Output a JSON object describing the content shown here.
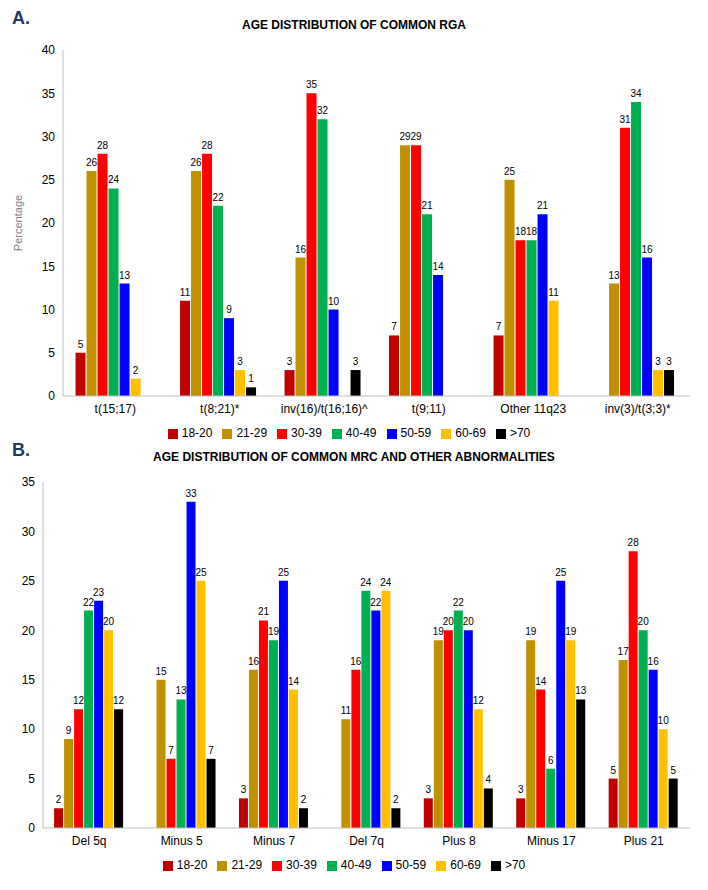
{
  "chart_data": [
    {
      "type": "bar",
      "annotation": "A.",
      "title": "AGE DISTRIBUTION OF COMMON RGA",
      "y_label": "Percentage",
      "categories": [
        "t(15;17)",
        "t(8;21)*",
        "inv(16)/t(16;16)^",
        "t(9;11)",
        "Other 11q23",
        "inv(3)/t(3;3)*"
      ],
      "series": [
        {
          "name": "18-20",
          "color": "#C00000",
          "values": [
            5,
            11,
            3,
            7,
            7,
            0
          ]
        },
        {
          "name": "21-29",
          "color": "#BF9000",
          "values": [
            26,
            26,
            16,
            29,
            25,
            13
          ]
        },
        {
          "name": "30-39",
          "color": "#FF0000",
          "values": [
            28,
            28,
            35,
            29,
            18,
            31
          ]
        },
        {
          "name": "40-49",
          "color": "#00B050",
          "values": [
            24,
            22,
            32,
            21,
            18,
            34
          ]
        },
        {
          "name": "50-59",
          "color": "#0000FF",
          "values": [
            13,
            9,
            10,
            14,
            21,
            16
          ]
        },
        {
          "name": "60-69",
          "color": "#FFC000",
          "values": [
            2,
            3,
            0,
            0,
            11,
            3
          ]
        },
        {
          "name": ">70",
          "color": "#000000",
          "values": [
            0,
            1,
            3,
            0,
            0,
            3
          ]
        }
      ],
      "ylim": [
        0,
        40
      ],
      "yticks": [
        0,
        5,
        10,
        15,
        20,
        25,
        30,
        35,
        40
      ],
      "grid": false,
      "legend": "bottom",
      "data_labels": true
    },
    {
      "type": "bar",
      "annotation": "B.",
      "title": "AGE DISTRIBUTION OF COMMON MRC AND OTHER ABNORMALITIES",
      "categories": [
        "Del 5q",
        "Minus 5",
        "Minus 7",
        "Del 7q",
        "Plus 8",
        "Minus 17",
        "Plus 21"
      ],
      "series": [
        {
          "name": "18-20",
          "color": "#C00000",
          "values": [
            2,
            0,
            3,
            0,
            3,
            3,
            5
          ]
        },
        {
          "name": "21-29",
          "color": "#BF9000",
          "values": [
            9,
            15,
            16,
            11,
            19,
            19,
            17
          ]
        },
        {
          "name": "30-39",
          "color": "#FF0000",
          "values": [
            12,
            7,
            21,
            16,
            20,
            14,
            28
          ]
        },
        {
          "name": "40-49",
          "color": "#00B050",
          "values": [
            22,
            13,
            19,
            24,
            22,
            6,
            20
          ]
        },
        {
          "name": "50-59",
          "color": "#0000FF",
          "values": [
            23,
            33,
            25,
            22,
            20,
            25,
            16
          ]
        },
        {
          "name": "60-69",
          "color": "#FFC000",
          "values": [
            20,
            25,
            14,
            24,
            12,
            19,
            10
          ]
        },
        {
          "name": ">70",
          "color": "#000000",
          "values": [
            12,
            7,
            2,
            2,
            4,
            13,
            5
          ]
        }
      ],
      "ylim": [
        0,
        35
      ],
      "yticks": [
        0,
        5,
        10,
        15,
        20,
        25,
        30,
        35
      ],
      "grid": false,
      "legend": "bottom",
      "data_labels": true
    }
  ]
}
